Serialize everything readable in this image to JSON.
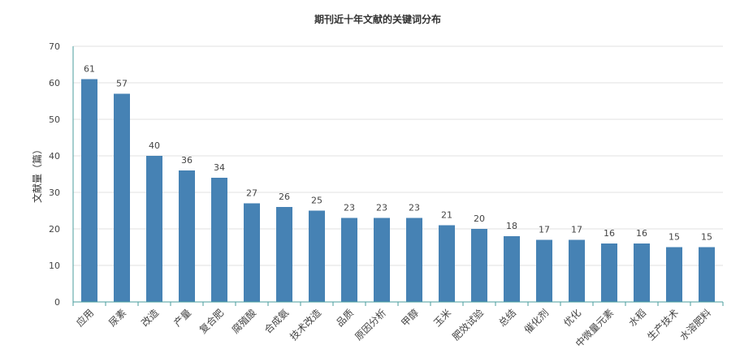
{
  "chart_data": {
    "type": "bar",
    "title": "期刊近十年文献的关键词分布",
    "xlabel": "",
    "ylabel": "文献量（篇）",
    "ylim": [
      0,
      70
    ],
    "yticks": [
      0,
      10,
      20,
      30,
      40,
      50,
      60,
      70
    ],
    "grid": true,
    "legend": "none",
    "bar_color": "#4682b4",
    "grid_color": "#e0e0e0",
    "axis_color": "#4a9e9e",
    "categories": [
      "应用",
      "尿素",
      "改造",
      "产量",
      "复合肥",
      "腐殖酸",
      "合成氨",
      "技术改造",
      "品质",
      "原因分析",
      "甲醇",
      "玉米",
      "肥效试验",
      "总结",
      "催化剂",
      "优化",
      "中微量元素",
      "水稻",
      "生产技术",
      "水溶肥料"
    ],
    "values": [
      61,
      57,
      40,
      36,
      34,
      27,
      26,
      25,
      23,
      23,
      23,
      21,
      20,
      18,
      17,
      17,
      16,
      16,
      15,
      15
    ]
  }
}
